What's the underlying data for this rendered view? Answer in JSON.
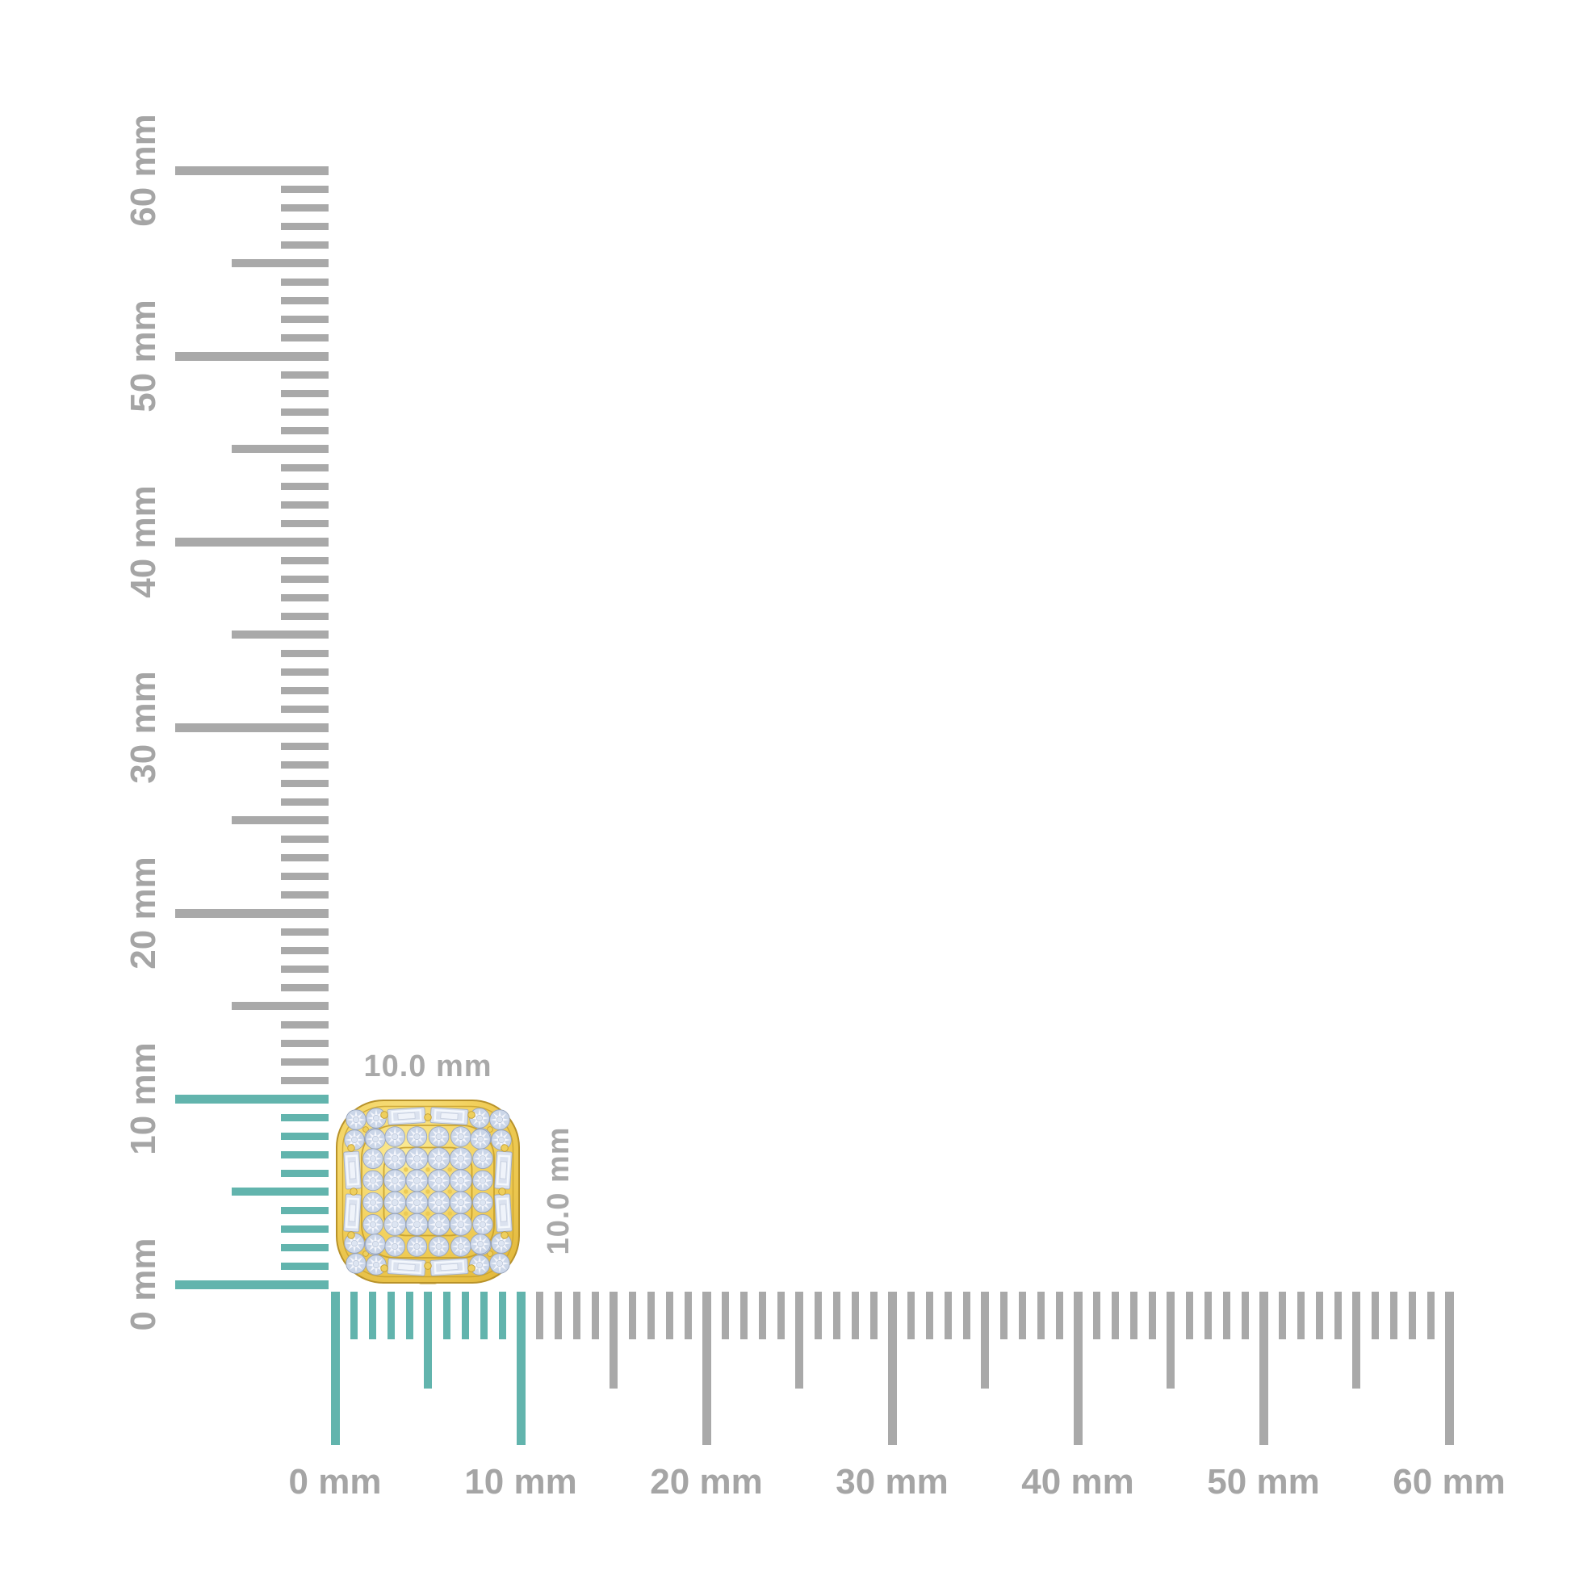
{
  "page": {
    "background_color": "#ffffff",
    "description": "Jewelry size-guide diagram: 10.0 mm cushion-shaped yellow-gold diamond cluster stud shown against vertical and horizontal millimeter rulers"
  },
  "rulers": {
    "unit": "mm",
    "min_mm": 0,
    "max_mm": 60,
    "minor_step_mm": 1,
    "half_step_mm": 5,
    "major_step_mm": 10,
    "highlight_range_mm": [
      0,
      10
    ],
    "vertical_labels": [
      "0 mm",
      "10 mm",
      "20 mm",
      "30 mm",
      "40 mm",
      "50 mm",
      "60 mm"
    ],
    "horizontal_labels": [
      "0 mm",
      "10 mm",
      "20 mm",
      "30 mm",
      "40 mm",
      "50 mm",
      "60 mm"
    ],
    "colors": {
      "tick_gray": "#a9a9a9",
      "tick_highlight": "#62b4ad",
      "label_gray": "#a5a5a5"
    }
  },
  "dimensions": {
    "width_label": "10.0 mm",
    "height_label": "10.0 mm",
    "label_color": "#a9a9a9"
  },
  "product": {
    "alt": "Cushion-shaped yellow gold stud earring pave-set with round diamonds, with round-diamond corner clusters and baguette-diamond sides",
    "size_mm": 10,
    "colors": {
      "gold": "#f2d05c",
      "gold_light": "#fbeb98",
      "gold_dark": "#c79f2b",
      "gold_edge": "#b8922a",
      "prong_gold": "#eecf5e",
      "diamond": "#cbd6e8",
      "diamond_light": "#f6f9fd",
      "diamond_edge": "#96a3bb"
    }
  }
}
